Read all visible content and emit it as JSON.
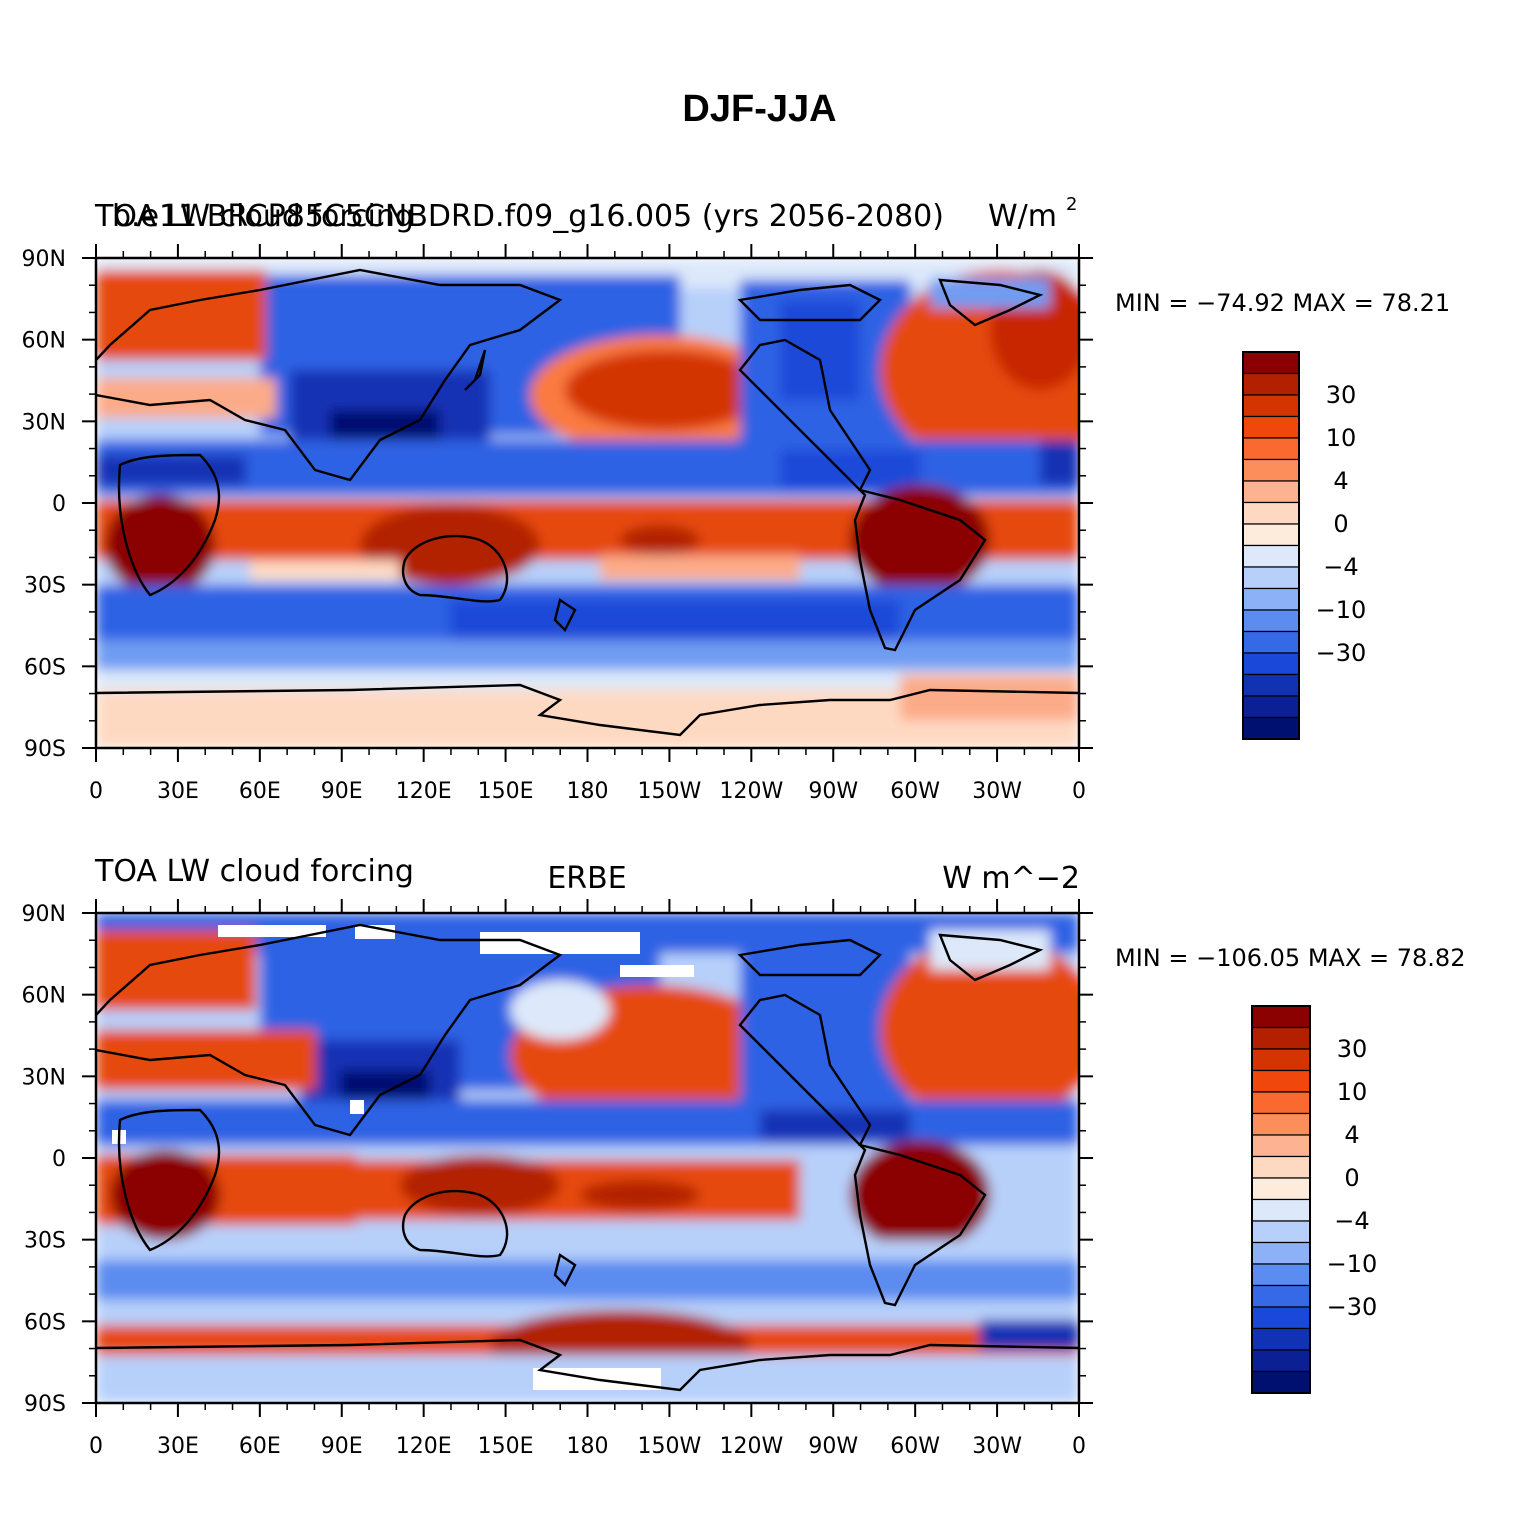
{
  "title": "DJF-JJA",
  "panels": [
    {
      "left_text": "TOA LW cloud forcing",
      "center_text": "b.e11.BRCP85C5CNBDRD.f09_g16.005 (yrs 2056-2080)",
      "right_text": "W/m",
      "right_sup": "2",
      "min_max": "MIN = −74.92 MAX =  78.21"
    },
    {
      "left_text": "TOA LW cloud forcing",
      "center_text": "ERBE",
      "right_text": "W m^−2",
      "right_sup": "",
      "min_max": "MIN = −106.05 MAX =  78.82"
    }
  ],
  "axes": {
    "lat_labels": [
      "90N",
      "60N",
      "30N",
      "0",
      "30S",
      "60S",
      "90S"
    ],
    "lon_labels": [
      "0",
      "30E",
      "60E",
      "90E",
      "120E",
      "150E",
      "180",
      "150W",
      "120W",
      "90W",
      "60W",
      "30W",
      "0"
    ]
  },
  "colorbar": {
    "labels": [
      "30",
      "10",
      "4",
      "0",
      "−4",
      "−10",
      "−30"
    ],
    "colors": [
      "#8b0000",
      "#b22000",
      "#d33400",
      "#f0480c",
      "#fa6a30",
      "#fc8e5c",
      "#fdb392",
      "#fed9c2",
      "#fdebdc",
      "#dde9fa",
      "#b7d0fa",
      "#8db1f7",
      "#5c8cf0",
      "#3669e6",
      "#1a48d8",
      "#1232b4",
      "#0a2094",
      "#001070"
    ]
  },
  "map_colors": {
    "deep_red": "#8b0000",
    "red": "#c82800",
    "orange_red": "#e64a10",
    "orange": "#fa7a40",
    "salmon": "#fcab88",
    "peach": "#fed9c2",
    "pale_blue": "#dde9fa",
    "light_blue": "#b7d0fa",
    "mid_blue": "#6f9cf2",
    "blue": "#2f62e4",
    "dark_blue": "#1232b4",
    "navy": "#001070",
    "coast": "#000000",
    "missing": "#ffffff"
  }
}
